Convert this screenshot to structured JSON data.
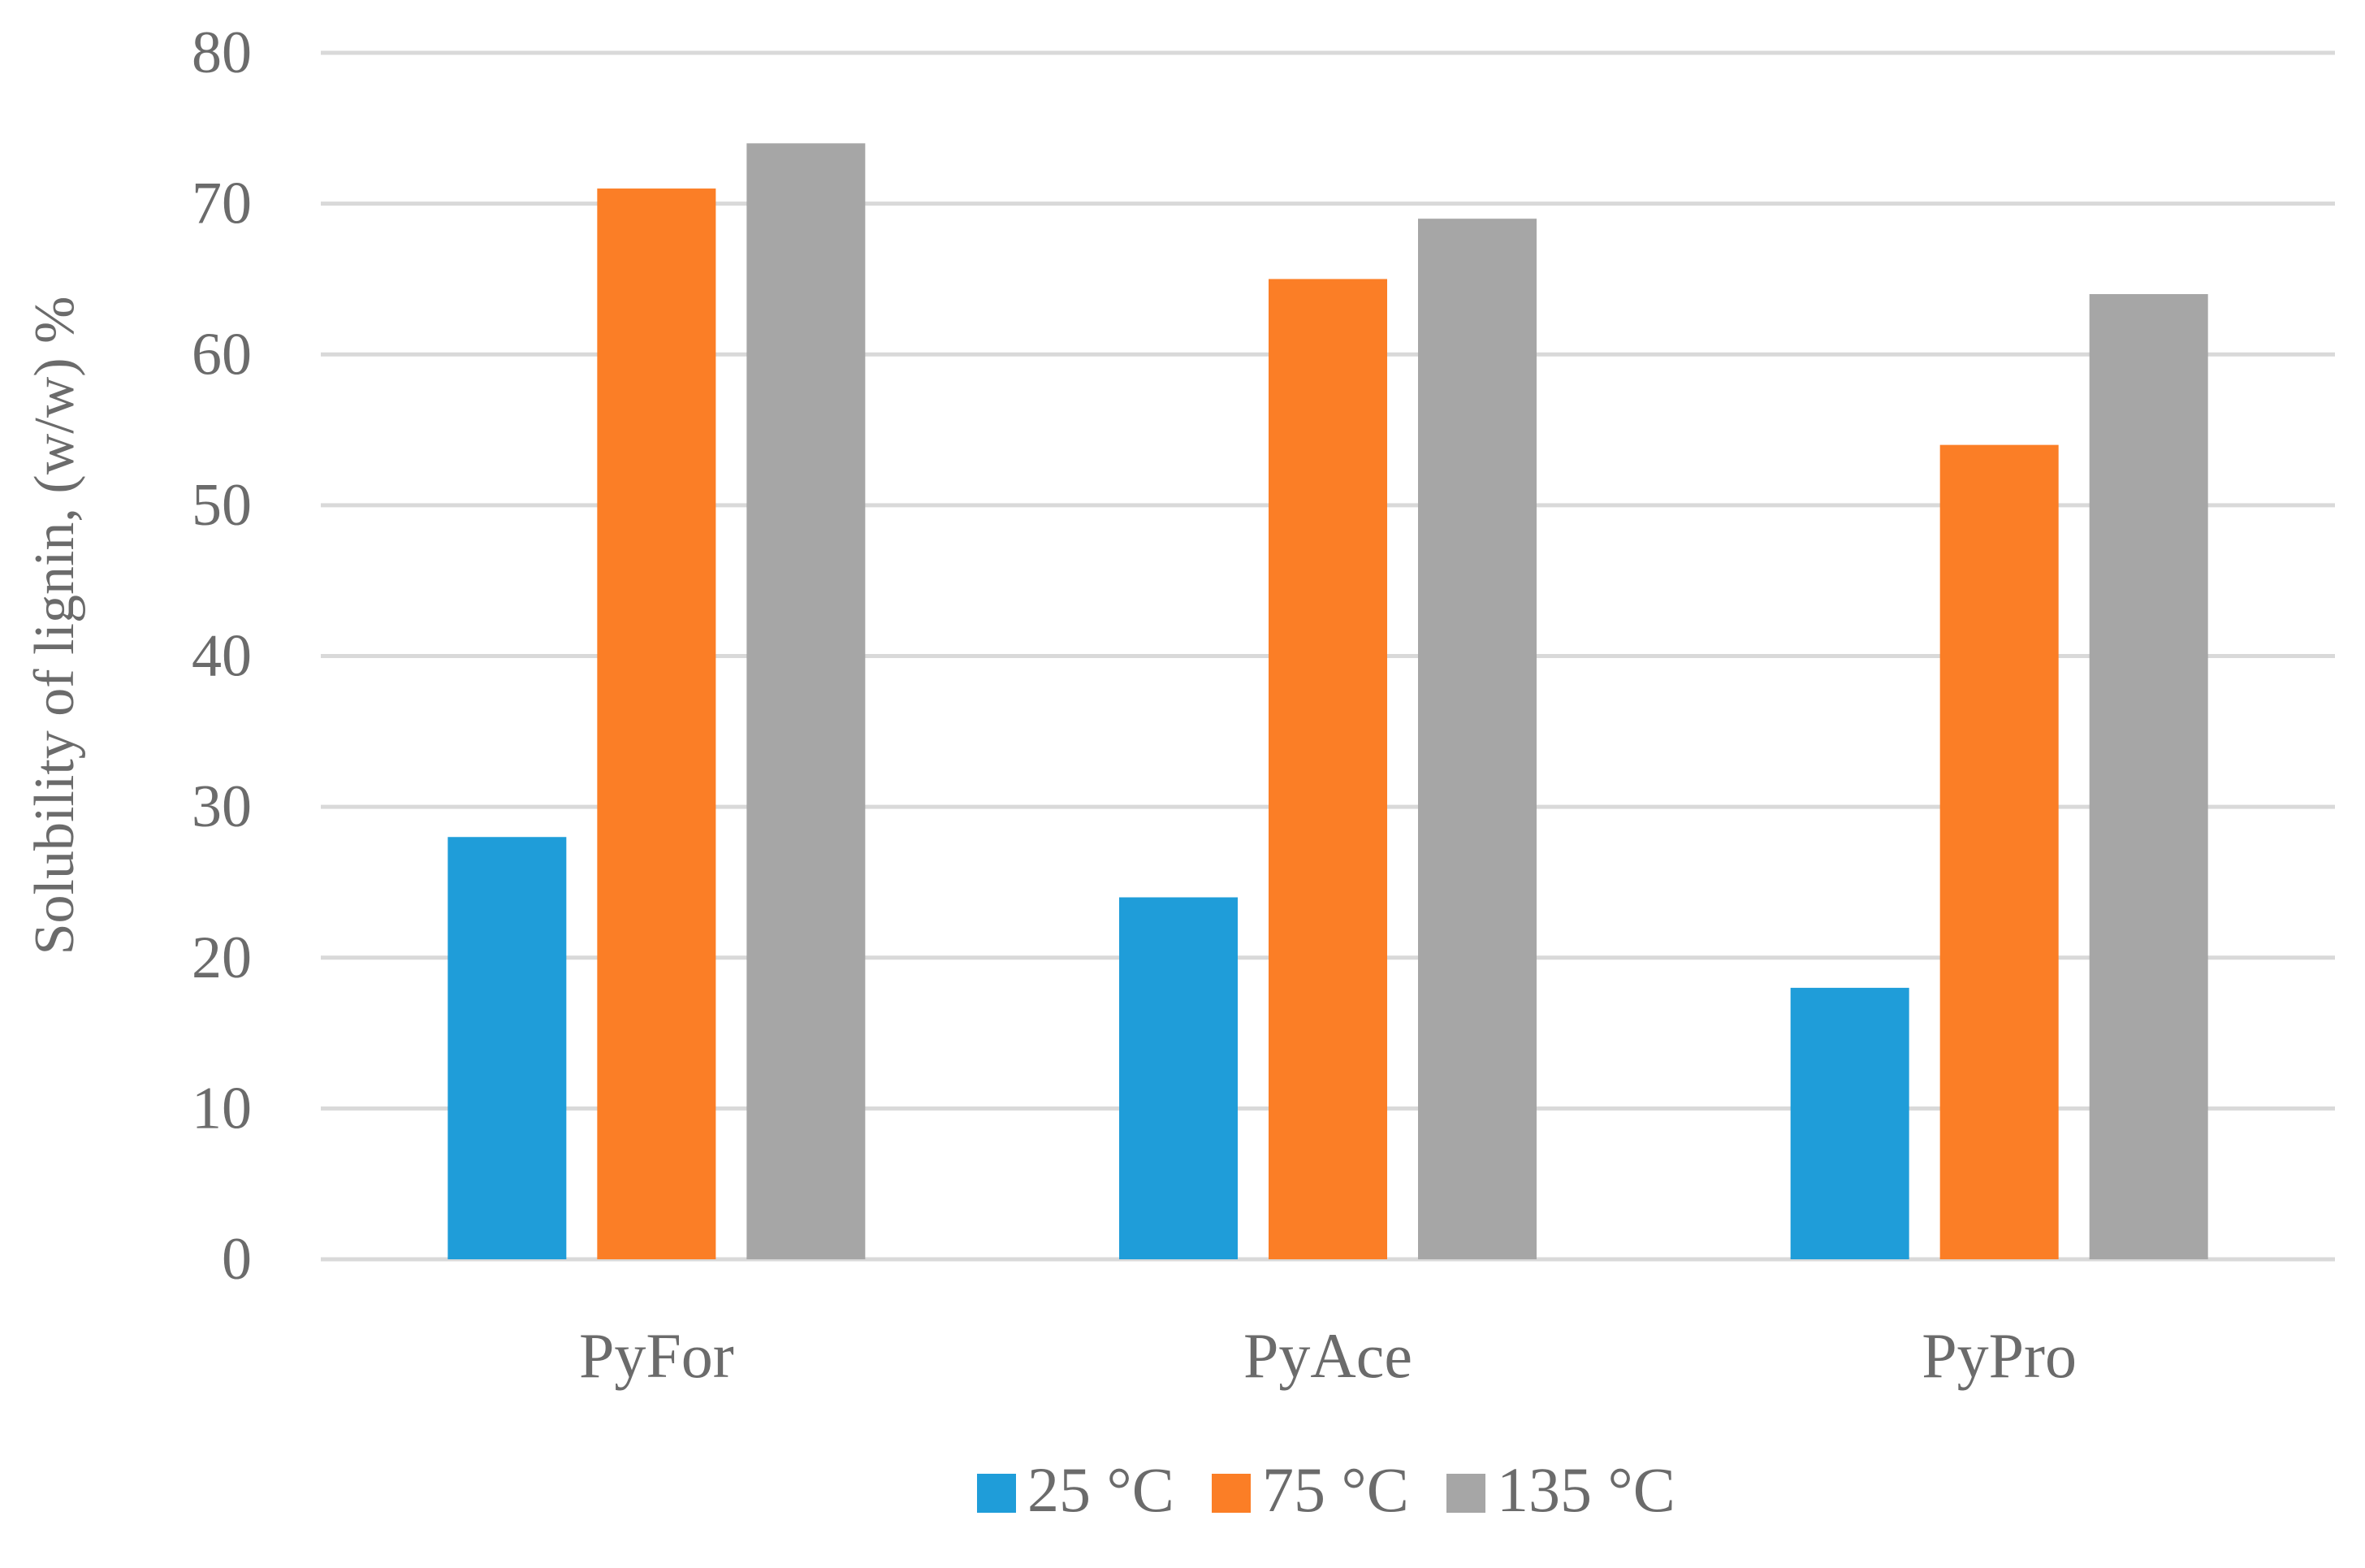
{
  "chart_data": {
    "type": "bar",
    "title": "",
    "xlabel": "",
    "ylabel": "Solubility of lignin, (w/w) %",
    "ylim": [
      0,
      80
    ],
    "yticks": [
      "0",
      "10",
      "20",
      "30",
      "40",
      "50",
      "60",
      "70",
      "80"
    ],
    "grid": true,
    "legend_position": "bottom",
    "categories": [
      "PyFor",
      "PyAce",
      "PyPro"
    ],
    "series": [
      {
        "name": "25 °C",
        "color": "#1f9dd9",
        "values": [
          28,
          24,
          18
        ]
      },
      {
        "name": "75 °C",
        "color": "#fb7e26",
        "values": [
          71,
          65,
          54
        ]
      },
      {
        "name": "135 °C",
        "color": "#a6a6a6",
        "values": [
          74,
          69,
          64
        ]
      }
    ]
  }
}
